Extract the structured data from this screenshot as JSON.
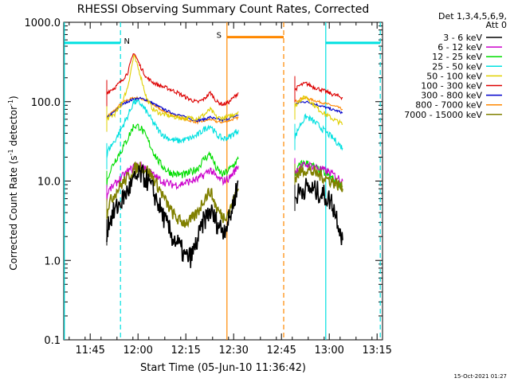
{
  "chart_data": {
    "type": "line",
    "title": "RHESSI Observing Summary Count Rates, Corrected",
    "xlabel": "Start Time (05-Jun-10 11:36:42)",
    "ylabel_main": "Corrected Count Rate (s",
    "ylabel_sup1": "-1",
    "ylabel_mid": " detector",
    "ylabel_sup2": "-1",
    "ylabel_end": ")",
    "yscale": "log",
    "ylim": [
      0.1,
      1000.0
    ],
    "x_unit": "minutes after 11:36:42",
    "xlim": [
      0,
      100
    ],
    "x_ticks": [
      {
        "label": "11:45",
        "x": 8.3
      },
      {
        "label": "12:00",
        "x": 23.3
      },
      {
        "label": "12:15",
        "x": 38.3
      },
      {
        "label": "12:30",
        "x": 53.3
      },
      {
        "label": "12:45",
        "x": 68.3
      },
      {
        "label": "13:00",
        "x": 83.3
      },
      {
        "label": "13:15",
        "x": 98.3
      }
    ],
    "y_ticks": [
      {
        "label": "0.1",
        "v": 0.1
      },
      {
        "label": "1.0",
        "v": 1.0
      },
      {
        "label": "10.0",
        "v": 10.0
      },
      {
        "label": "100.0",
        "v": 100.0
      },
      {
        "label": "1000.0",
        "v": 1000.0
      }
    ],
    "legend_header": [
      "Det 1,3,4,5,6,9,",
      "Att 0"
    ],
    "legend_position": "right",
    "series": [
      {
        "name": "3 - 6 keV",
        "color": "#000000",
        "segments": [
          {
            "x": [
              13.5,
              14,
              16,
              18,
              20,
              22,
              24,
              26,
              28,
              30,
              32,
              34,
              36,
              38,
              40,
              42,
              44,
              46,
              48,
              50,
              52,
              54.8
            ],
            "y": [
              2.2,
              3.0,
              4.2,
              5.5,
              7.5,
              10.0,
              12.0,
              10.5,
              7.5,
              4.8,
              3.0,
              2.0,
              1.6,
              1.1,
              1.1,
              1.8,
              3.2,
              4.2,
              3.0,
              2.4,
              3.3,
              10.0
            ]
          },
          {
            "x": [
              72.5,
              74,
              76,
              78,
              80,
              82,
              84,
              86,
              87.5
            ],
            "y": [
              6.0,
              7.5,
              8.2,
              7.8,
              7.2,
              6.5,
              5.5,
              3.2,
              1.8
            ]
          }
        ]
      },
      {
        "name": "6 - 12 keV",
        "color": "#cc00cc",
        "segments": [
          {
            "x": [
              13.5,
              14,
              16,
              18,
              20,
              22,
              24,
              26,
              28,
              30,
              32,
              34,
              36,
              38,
              40,
              42,
              44,
              46,
              48,
              50,
              52,
              54.8
            ],
            "y": [
              6.0,
              7.5,
              9.0,
              11.0,
              13.0,
              15.0,
              16.0,
              14.5,
              12.0,
              10.5,
              9.5,
              9.0,
              9.0,
              9.5,
              10.0,
              10.5,
              12.0,
              14.0,
              11.0,
              10.0,
              11.0,
              15.5
            ]
          },
          {
            "x": [
              72.5,
              74,
              76,
              78,
              80,
              82,
              84,
              86,
              87.5
            ],
            "y": [
              13.0,
              15.0,
              16.0,
              15.5,
              14.5,
              13.5,
              12.5,
              11.0,
              10.0
            ]
          }
        ]
      },
      {
        "name": "12 - 25 keV",
        "color": "#00dd00",
        "segments": [
          {
            "x": [
              13.5,
              14,
              16,
              18,
              20,
              22,
              24,
              26,
              28,
              30,
              32,
              34,
              36,
              38,
              40,
              42,
              44,
              46,
              48,
              50,
              52,
              54.8
            ],
            "y": [
              9.0,
              12.0,
              18.0,
              24.0,
              34.0,
              50.0,
              48.0,
              35.0,
              24.0,
              17.0,
              14.0,
              12.5,
              12.0,
              12.0,
              13.0,
              14.5,
              19.0,
              22.0,
              14.0,
              12.0,
              14.0,
              19.0
            ]
          },
          {
            "x": [
              72.5,
              74,
              76,
              78,
              80,
              82,
              84,
              86,
              87.5
            ],
            "y": [
              12.0,
              16.0,
              17.0,
              15.5,
              14.0,
              12.5,
              11.0,
              9.5,
              8.5
            ]
          }
        ]
      },
      {
        "name": "25 - 50 keV",
        "color": "#00e0e0",
        "segments": [
          {
            "x": [
              13.5,
              14,
              16,
              18,
              20,
              22,
              24,
              26,
              28,
              30,
              32,
              34,
              36,
              38,
              40,
              42,
              44,
              46,
              48,
              50,
              52,
              54.8
            ],
            "y": [
              20.0,
              25.0,
              32.0,
              45.0,
              65.0,
              100.0,
              95.0,
              75.0,
              55.0,
              42.0,
              36.0,
              33.0,
              32.0,
              33.0,
              35.0,
              38.0,
              45.0,
              50.0,
              38.0,
              34.0,
              36.0,
              44.0
            ]
          },
          {
            "x": [
              72.5,
              74,
              76,
              78,
              80,
              82,
              84,
              86,
              87.5
            ],
            "y": [
              35.0,
              50.0,
              65.0,
              58.0,
              50.0,
              42.0,
              36.0,
              30.0,
              26.0
            ]
          }
        ]
      },
      {
        "name": "50 - 100 keV",
        "color": "#e0d000",
        "segments": [
          {
            "x": [
              13.5,
              14,
              16,
              18,
              20,
              22,
              24,
              26,
              28,
              30,
              32,
              34,
              36,
              38,
              40,
              42,
              44,
              46,
              48,
              50,
              52,
              54.8
            ],
            "y": [
              60.0,
              62.0,
              70.0,
              90.0,
              150.0,
              380.0,
              220.0,
              110.0,
              80.0,
              72.0,
              68.0,
              65.0,
              63.0,
              62.0,
              62.0,
              62.0,
              68.0,
              80.0,
              63.0,
              62.0,
              65.0,
              75.0
            ]
          },
          {
            "x": [
              72.5,
              74,
              76,
              78,
              80,
              82,
              84,
              86,
              87.5
            ],
            "y": [
              85.0,
              105.0,
              115.0,
              95.0,
              80.0,
              70.0,
              62.0,
              56.0,
              52.0
            ]
          }
        ]
      },
      {
        "name": "100 - 300 keV",
        "color": "#dd0000",
        "segments": [
          {
            "x": [
              13.5,
              14,
              16,
              18,
              20,
              22,
              24,
              26,
              28,
              30,
              32,
              34,
              36,
              38,
              40,
              42,
              44,
              46,
              48,
              50,
              52,
              54.8
            ],
            "y": [
              125.0,
              135.0,
              150.0,
              180.0,
              230.0,
              420.0,
              280.0,
              200.0,
              175.0,
              160.0,
              150.0,
              140.0,
              128.0,
              115.0,
              105.0,
              98.0,
              108.0,
              130.0,
              100.0,
              92.0,
              100.0,
              130.0
            ]
          },
          {
            "x": [
              72.5,
              74,
              76,
              78,
              80,
              82,
              84,
              86,
              87.5
            ],
            "y": [
              140.0,
              160.0,
              170.0,
              155.0,
              145.0,
              135.0,
              125.0,
              118.0,
              112.0
            ]
          }
        ]
      },
      {
        "name": "300 - 800 keV",
        "color": "#0000cc",
        "segments": [
          {
            "x": [
              13.5,
              14,
              16,
              18,
              20,
              22,
              24,
              26,
              28,
              30,
              32,
              34,
              36,
              38,
              40,
              42,
              44,
              46,
              48,
              50,
              52,
              54.8
            ],
            "y": [
              60.0,
              65.0,
              75.0,
              90.0,
              100.0,
              108.0,
              110.0,
              105.0,
              95.0,
              86.0,
              78.0,
              72.0,
              68.0,
              64.0,
              60.0,
              58.0,
              60.0,
              64.0,
              60.0,
              58.0,
              62.0,
              68.0
            ]
          },
          {
            "x": [
              72.5,
              74,
              76,
              78,
              80,
              82,
              84,
              86,
              87.5
            ],
            "y": [
              92.0,
              98.0,
              100.0,
              95.0,
              90.0,
              85.0,
              80.0,
              76.0,
              72.0
            ]
          }
        ]
      },
      {
        "name": "800 - 7000 keV",
        "color": "#ff8800",
        "segments": [
          {
            "x": [
              13.5,
              14,
              16,
              18,
              20,
              22,
              24,
              26,
              28,
              30,
              32,
              34,
              36,
              38,
              40,
              42,
              44,
              46,
              48,
              50,
              52,
              54.8
            ],
            "y": [
              62.0,
              68.0,
              78.0,
              95.0,
              105.0,
              112.0,
              110.0,
              102.0,
              92.0,
              82.0,
              74.0,
              68.0,
              64.0,
              60.0,
              57.0,
              55.0,
              57.0,
              60.0,
              56.0,
              55.0,
              58.0,
              63.0
            ]
          },
          {
            "x": [
              72.5,
              74,
              76,
              78,
              80,
              82,
              84,
              86,
              87.5
            ],
            "y": [
              100.0,
              108.0,
              112.0,
              105.0,
              100.0,
              95.0,
              90.0,
              85.0,
              80.0
            ]
          }
        ]
      },
      {
        "name": "7000 - 15000 keV",
        "color": "#808000",
        "segments": [
          {
            "x": [
              13.5,
              14,
              16,
              18,
              20,
              22,
              24,
              26,
              28,
              30,
              32,
              34,
              36,
              38,
              40,
              42,
              44,
              46,
              48,
              50,
              52,
              54.8
            ],
            "y": [
              4.0,
              5.0,
              7.0,
              9.0,
              11.0,
              14.0,
              15.5,
              14.0,
              11.0,
              8.0,
              5.5,
              4.0,
              3.2,
              3.0,
              3.2,
              4.0,
              6.0,
              7.5,
              4.5,
              3.5,
              4.2,
              8.0
            ]
          },
          {
            "x": [
              72.5,
              74,
              76,
              78,
              80,
              82,
              84,
              86,
              87.5
            ],
            "y": [
              11.0,
              13.0,
              14.0,
              13.0,
              12.0,
              11.0,
              10.0,
              9.0,
              8.0
            ]
          }
        ]
      }
    ],
    "event_lines": [
      {
        "x": 0.2,
        "color": "#00e0e0",
        "style": "solid"
      },
      {
        "x": 17.8,
        "color": "#00e0e0",
        "style": "dashed"
      },
      {
        "x": 51.2,
        "color": "#ff8800",
        "style": "solid"
      },
      {
        "x": 69.0,
        "color": "#ff8800",
        "style": "dashed"
      },
      {
        "x": 82.2,
        "color": "#00e0e0",
        "style": "solid"
      },
      {
        "x": 99.3,
        "color": "#00e0e0",
        "style": "dashed"
      }
    ],
    "flag_bars": [
      {
        "x0": 0.2,
        "x1": 17.8,
        "v": 550,
        "color": "#00e0e0",
        "label": "N"
      },
      {
        "x0": 51.2,
        "x1": 69.0,
        "v": 650,
        "color": "#ff8800",
        "label": "S"
      },
      {
        "x0": 82.2,
        "x1": 99.3,
        "v": 550,
        "color": "#00e0e0",
        "label": ""
      }
    ]
  },
  "footer": {
    "timestamp": "15-Oct-2021 01:27"
  }
}
